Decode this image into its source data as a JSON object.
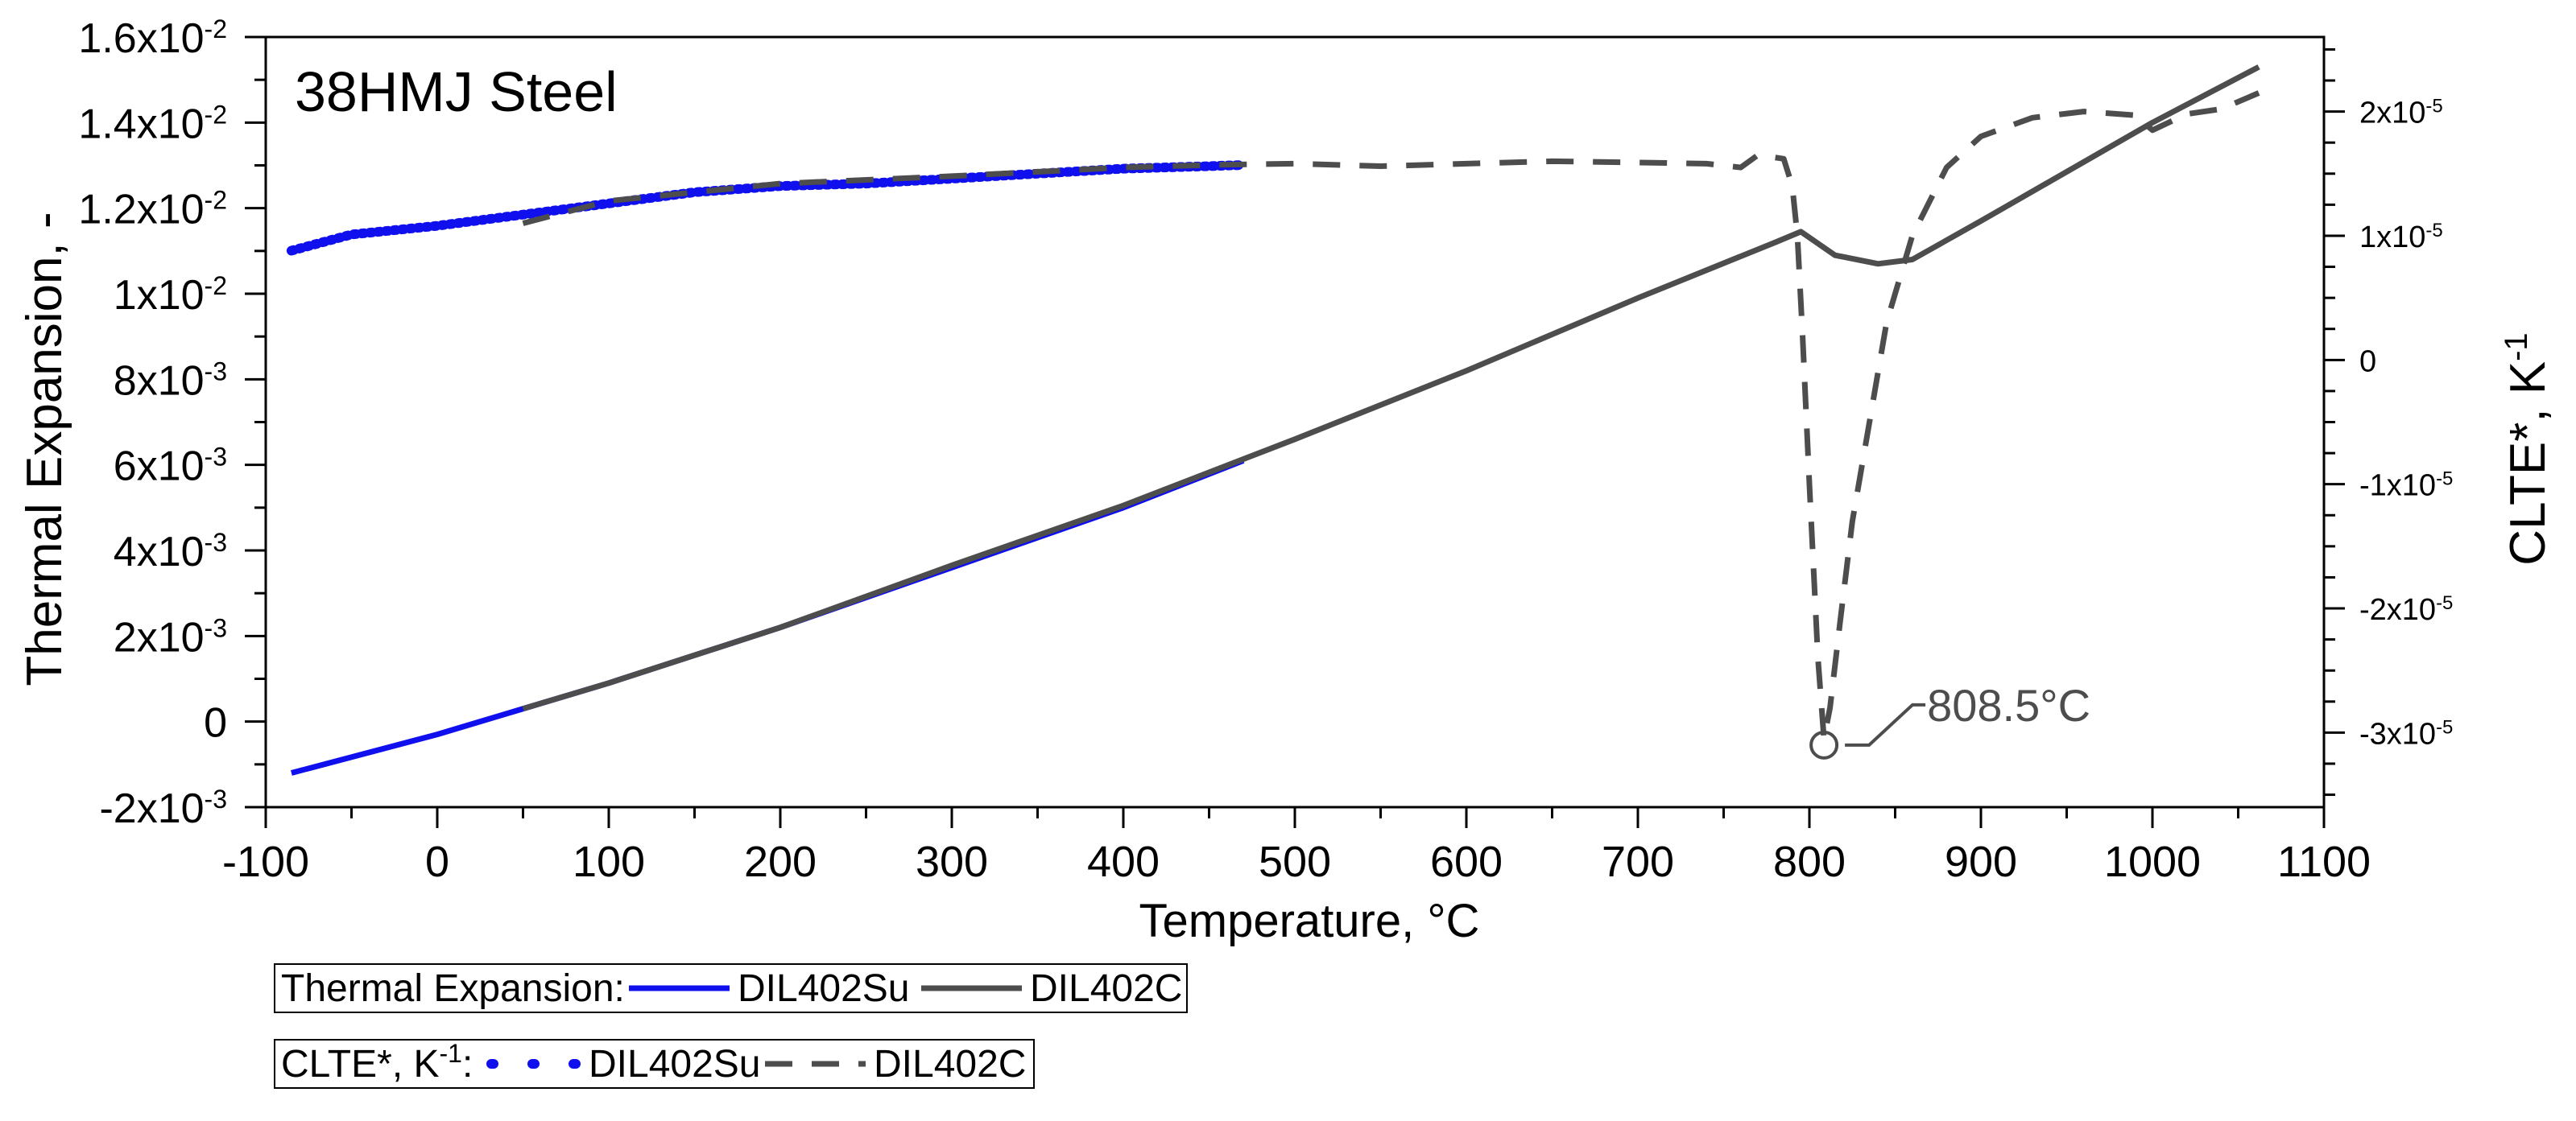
{
  "chart_data": {
    "type": "line",
    "title": "38HMJ Steel",
    "xlabel": "Temperature, °C",
    "ylabel": "Thermal Expansion, -",
    "y2label_main": "CLTE*, K",
    "y2label_sup": "-1",
    "xlim": [
      -100,
      1100
    ],
    "ylim": [
      -0.002,
      0.016
    ],
    "y2lim": [
      -3.6e-05,
      2.6e-05
    ],
    "x_ticks": [
      {
        "value": -100,
        "label": "-100"
      },
      {
        "value": 0,
        "label": "0"
      },
      {
        "value": 100,
        "label": "100"
      },
      {
        "value": 200,
        "label": "200"
      },
      {
        "value": 300,
        "label": "300"
      },
      {
        "value": 400,
        "label": "400"
      },
      {
        "value": 500,
        "label": "500"
      },
      {
        "value": 600,
        "label": "600"
      },
      {
        "value": 700,
        "label": "700"
      },
      {
        "value": 800,
        "label": "800"
      },
      {
        "value": 900,
        "label": "900"
      },
      {
        "value": 1000,
        "label": "1000"
      },
      {
        "value": 1100,
        "label": "1100"
      }
    ],
    "y_ticks": [
      {
        "value": -0.002,
        "mant": "-2x10",
        "exp": "-3"
      },
      {
        "value": 0,
        "mant": "0",
        "exp": ""
      },
      {
        "value": 0.002,
        "mant": "2x10",
        "exp": "-3"
      },
      {
        "value": 0.004,
        "mant": "4x10",
        "exp": "-3"
      },
      {
        "value": 0.006,
        "mant": "6x10",
        "exp": "-3"
      },
      {
        "value": 0.008,
        "mant": "8x10",
        "exp": "-3"
      },
      {
        "value": 0.01,
        "mant": "1x10",
        "exp": "-2"
      },
      {
        "value": 0.012,
        "mant": "1.2x10",
        "exp": "-2"
      },
      {
        "value": 0.014,
        "mant": "1.4x10",
        "exp": "-2"
      },
      {
        "value": 0.016,
        "mant": "1.6x10",
        "exp": "-2"
      }
    ],
    "y2_ticks": [
      {
        "value": -3e-05,
        "mant": "-3x10",
        "exp": "-5"
      },
      {
        "value": -2e-05,
        "mant": "-2x10",
        "exp": "-5"
      },
      {
        "value": -1e-05,
        "mant": "-1x10",
        "exp": "-5"
      },
      {
        "value": 0,
        "mant": "0",
        "exp": ""
      },
      {
        "value": 1e-05,
        "mant": "1x10",
        "exp": "-5"
      },
      {
        "value": 2e-05,
        "mant": "2x10",
        "exp": "-5"
      }
    ],
    "series": [
      {
        "name": "DIL402Su",
        "quantity": "Thermal Expansion",
        "axis": "left",
        "style": "solid",
        "color": "#1010ee",
        "x": [
          -85,
          0,
          100,
          200,
          300,
          400,
          470
        ],
        "y": [
          -0.0012,
          -0.0003,
          0.0009,
          0.0022,
          0.0036,
          0.005,
          0.0061
        ]
      },
      {
        "name": "DIL402C",
        "quantity": "Thermal Expansion",
        "axis": "left",
        "style": "solid",
        "color": "#4d4d4d",
        "x": [
          50,
          100,
          200,
          300,
          400,
          500,
          600,
          700,
          780,
          795,
          815,
          840,
          860,
          900,
          1000,
          1062
        ],
        "y": [
          0.0003,
          0.0009,
          0.0022,
          0.00365,
          0.00505,
          0.0066,
          0.0082,
          0.0099,
          0.0112,
          0.01145,
          0.0109,
          0.0107,
          0.0108,
          0.0117,
          0.014,
          0.0153
        ]
      },
      {
        "name": "DIL402Su",
        "quantity": "CLTE*",
        "axis": "right",
        "style": "dotted",
        "color": "#1010ee",
        "x": [
          -85,
          -50,
          0,
          50,
          100,
          150,
          200,
          250,
          300,
          350,
          400,
          450,
          470
        ],
        "y": [
          8.8e-06,
          1.01e-05,
          1.08e-05,
          1.17e-05,
          1.26e-05,
          1.35e-05,
          1.4e-05,
          1.42e-05,
          1.46e-05,
          1.5e-05,
          1.54e-05,
          1.56e-05,
          1.57e-05
        ]
      },
      {
        "name": "DIL402C",
        "quantity": "CLTE*",
        "axis": "right",
        "style": "dashed",
        "color": "#4d4d4d",
        "x": [
          50,
          100,
          150,
          200,
          300,
          400,
          450,
          500,
          550,
          600,
          650,
          700,
          740,
          760,
          770,
          785,
          790,
          793,
          796,
          800,
          805,
          808.5,
          812,
          818,
          825,
          835,
          845,
          860,
          880,
          900,
          930,
          960,
          990,
          1000,
          1020,
          1040,
          1062
        ],
        "y": [
          1.1e-05,
          1.28e-05,
          1.35e-05,
          1.42e-05,
          1.48e-05,
          1.55e-05,
          1.57e-05,
          1.58e-05,
          1.56e-05,
          1.58e-05,
          1.6e-05,
          1.59e-05,
          1.58e-05,
          1.55e-05,
          1.65e-05,
          1.62e-05,
          1.4e-05,
          1e-05,
          2e-06,
          -1e-05,
          -2.4e-05,
          -3.05e-05,
          -2.8e-05,
          -2.1e-05,
          -1.3e-05,
          -5e-06,
          3e-06,
          1e-05,
          1.55e-05,
          1.8e-05,
          1.95e-05,
          2e-05,
          1.97e-05,
          1.85e-05,
          1.98e-05,
          2.02e-05,
          2.15e-05
        ]
      }
    ],
    "annotations": [
      {
        "text": "808.5°C",
        "x": 808.5,
        "y": -3.1e-05,
        "axis": "right",
        "marker": "circle"
      }
    ],
    "legends": [
      {
        "label": "Thermal Expansion:",
        "entries": [
          {
            "name": "DIL402Su",
            "style": "solid",
            "color": "#1010ee"
          },
          {
            "name": "DIL402C",
            "style": "solid",
            "color": "#4d4d4d"
          }
        ]
      },
      {
        "label_main": "CLTE*, K",
        "label_sup": "-1",
        "label_end": ":",
        "entries": [
          {
            "name": "DIL402Su",
            "style": "dotted",
            "color": "#1010ee"
          },
          {
            "name": "DIL402C",
            "style": "dashed",
            "color": "#4d4d4d"
          }
        ]
      }
    ]
  }
}
